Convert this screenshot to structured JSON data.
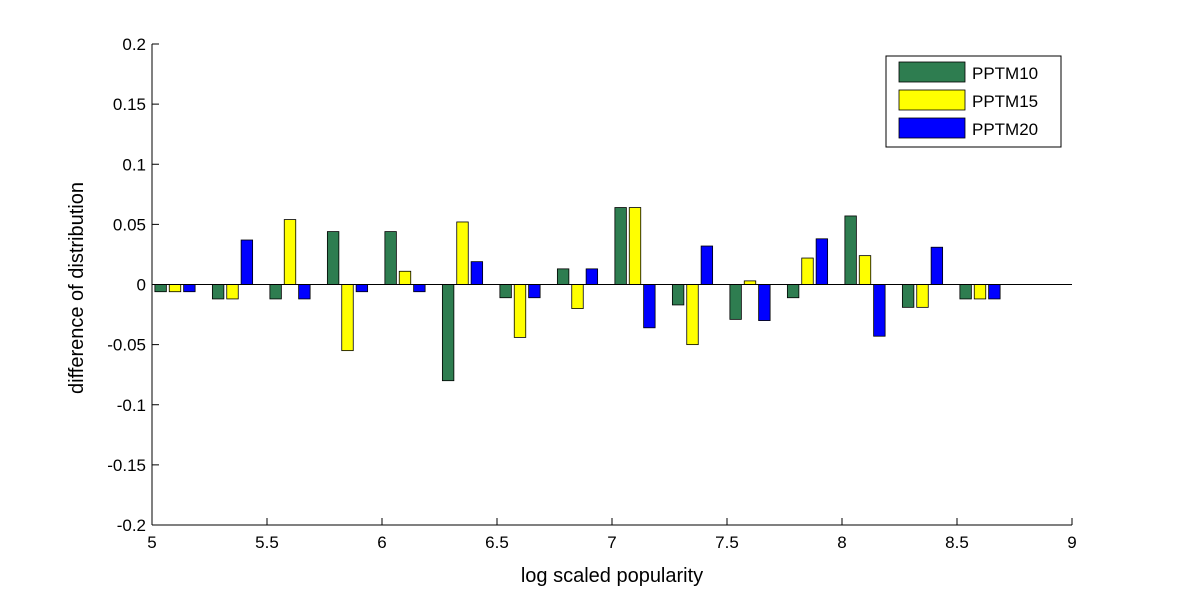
{
  "chart_data": {
    "type": "bar",
    "title": "",
    "xlabel": "log scaled popularity",
    "ylabel": "difference of distribution",
    "xlim": [
      5,
      9
    ],
    "ylim": [
      -0.2,
      0.2
    ],
    "xticks": [
      5,
      5.5,
      6,
      6.5,
      7,
      7.5,
      8,
      8.5,
      9
    ],
    "xtick_labels": [
      "5",
      "5.5",
      "6",
      "6.5",
      "7",
      "7.5",
      "8",
      "8.5",
      "9"
    ],
    "yticks": [
      -0.2,
      -0.15,
      -0.1,
      -0.05,
      0,
      0.05,
      0.1,
      0.15,
      0.2
    ],
    "ytick_labels": [
      "-0.2",
      "-0.15",
      "-0.1",
      "-0.05",
      "0",
      "0.05",
      "0.1",
      "0.15",
      "0.2"
    ],
    "grid": false,
    "legend_position": "top-right",
    "x": [
      5.1,
      5.35,
      5.6,
      5.85,
      6.1,
      6.35,
      6.6,
      6.85,
      7.1,
      7.35,
      7.6,
      7.85,
      8.1,
      8.35,
      8.6
    ],
    "series": [
      {
        "name": "PPTM10",
        "color": "#2e7d50",
        "values": [
          -0.006,
          -0.012,
          -0.012,
          0.044,
          0.044,
          -0.08,
          -0.011,
          0.013,
          0.064,
          -0.017,
          -0.029,
          -0.011,
          0.057,
          -0.019,
          -0.012
        ]
      },
      {
        "name": "PPTM15",
        "color": "#ffff00",
        "values": [
          -0.006,
          -0.012,
          0.054,
          -0.055,
          0.011,
          0.052,
          -0.044,
          -0.02,
          0.064,
          -0.05,
          0.003,
          0.022,
          0.024,
          -0.019,
          -0.012
        ]
      },
      {
        "name": "PPTM20",
        "color": "#0000ff",
        "values": [
          -0.006,
          0.037,
          -0.012,
          -0.006,
          -0.006,
          0.019,
          -0.011,
          0.013,
          -0.036,
          0.032,
          -0.03,
          0.038,
          -0.043,
          0.031,
          -0.012
        ]
      }
    ]
  }
}
